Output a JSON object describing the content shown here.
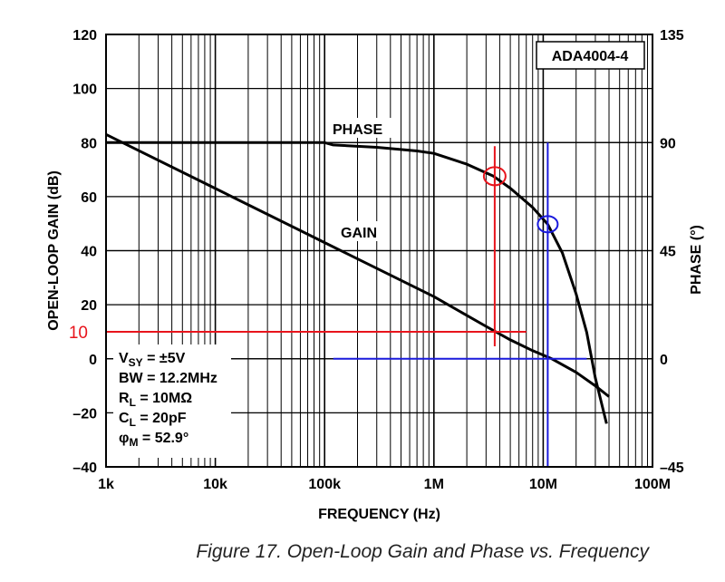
{
  "chart_data": {
    "type": "line",
    "title": "",
    "xlabel": "FREQUENCY (Hz)",
    "ylabel_left": "OPEN-LOOP GAIN (dB)",
    "ylabel_right": "PHASE (°)",
    "x_scale": "log",
    "xlim": [
      1000,
      100000000
    ],
    "ylim_left": [
      -40,
      120
    ],
    "ylim_right": [
      -45,
      135
    ],
    "grid": true,
    "x_ticks": [
      1000,
      10000,
      100000,
      1000000,
      10000000,
      100000000
    ],
    "x_tick_labels": [
      "1k",
      "10k",
      "100k",
      "1M",
      "10M",
      "100M"
    ],
    "y_left_ticks": [
      -40,
      -20,
      0,
      20,
      40,
      60,
      80,
      100,
      120
    ],
    "y_left_tick_labels": [
      "–40",
      "–20",
      "0",
      "20",
      "40",
      "60",
      "80",
      "100",
      "120"
    ],
    "y_right_ticks": [
      -45,
      0,
      45,
      90,
      135
    ],
    "y_right_tick_labels": [
      "–45",
      "0",
      "45",
      "90",
      "135"
    ],
    "series": [
      {
        "name": "GAIN",
        "axis": "left",
        "x": [
          1000,
          10000,
          100000,
          1000000,
          3000000,
          5000000,
          8000000,
          12000000,
          20000000,
          30000000,
          40000000
        ],
        "y": [
          83,
          63,
          43,
          23,
          12,
          7,
          3,
          0,
          -5,
          -10,
          -14
        ]
      },
      {
        "name": "PHASE",
        "axis": "right",
        "x": [
          1000,
          10000,
          100000,
          120000,
          300000,
          700000,
          1000000,
          2000000,
          3500000,
          5000000,
          8000000,
          11000000,
          15000000,
          20000000,
          25000000,
          30000000,
          38000000
        ],
        "y": [
          90,
          90,
          90,
          89,
          88,
          86.5,
          85.5,
          81,
          76,
          71,
          63,
          56,
          44,
          27,
          11,
          -8,
          -27
        ]
      }
    ],
    "annotations": {
      "device": "ADA4004-4",
      "phase_label": "PHASE",
      "gain_label": "GAIN",
      "red_level_label": "10",
      "conditions": [
        {
          "main": "V",
          "sub": "SY",
          "rest": " = ±5V"
        },
        {
          "main": "BW = 12.2MHz",
          "sub": "",
          "rest": ""
        },
        {
          "main": "R",
          "sub": "L",
          "rest": " = 10MΩ"
        },
        {
          "main": "C",
          "sub": "L",
          "rest": " = 20pF"
        },
        {
          "main": "φ",
          "sub": "M",
          "rest": " = 52.9°"
        }
      ],
      "red_marker": {
        "x": 3600000,
        "gain_level": 10,
        "gain_line_x_start": 1000,
        "gain_line_x_end": 7000000,
        "phase_point": 76
      },
      "blue_marker": {
        "x": 11000000,
        "phase_level": 0,
        "phase_line_x_start": 120000,
        "phase_line_x_end": 25000000,
        "phase_point": 56
      },
      "colors": {
        "red": "#e8141c",
        "blue": "#1a1adc",
        "curve": "#000000"
      }
    },
    "caption": "Figure 17. Open-Loop Gain and Phase vs. Frequency"
  }
}
